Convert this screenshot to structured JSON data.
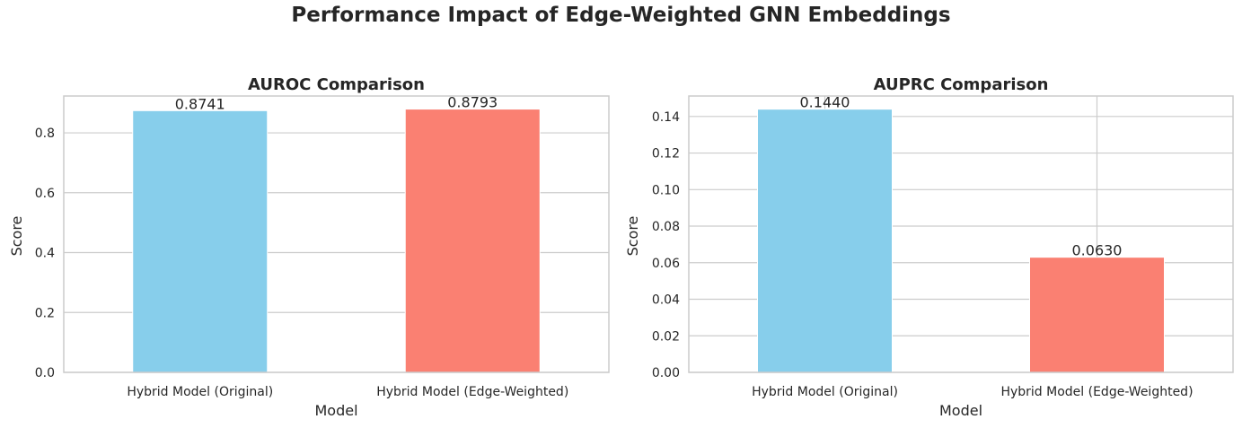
{
  "suptitle": "Performance Impact of Edge-Weighted GNN Embeddings",
  "chart_data": [
    {
      "type": "bar",
      "title": "AUROC Comparison",
      "xlabel": "Model",
      "ylabel": "Score",
      "categories": [
        "Hybrid Model (Original)",
        "Hybrid Model (Edge-Weighted)"
      ],
      "values": [
        0.8741,
        0.8793
      ],
      "value_labels": [
        "0.8741",
        "0.8793"
      ],
      "colors": [
        "#87ceeb",
        "#fa8072"
      ],
      "ylim": [
        0,
        0.923
      ],
      "yticks": [
        0.0,
        0.2,
        0.4,
        0.6,
        0.8
      ],
      "ytick_labels": [
        "0.0",
        "0.2",
        "0.4",
        "0.6",
        "0.8"
      ],
      "grid": true,
      "vertical_grid": false
    },
    {
      "type": "bar",
      "title": "AUPRC Comparison",
      "xlabel": "Model",
      "ylabel": "Score",
      "categories": [
        "Hybrid Model (Original)",
        "Hybrid Model (Edge-Weighted)"
      ],
      "values": [
        0.144,
        0.063
      ],
      "value_labels": [
        "0.1440",
        "0.0630"
      ],
      "colors": [
        "#87ceeb",
        "#fa8072"
      ],
      "ylim": [
        0,
        0.1512
      ],
      "yticks": [
        0.0,
        0.02,
        0.04,
        0.06,
        0.08,
        0.1,
        0.12,
        0.14
      ],
      "ytick_labels": [
        "0.00",
        "0.02",
        "0.04",
        "0.06",
        "0.08",
        "0.10",
        "0.12",
        "0.14"
      ],
      "grid": true,
      "vertical_grid": true
    }
  ]
}
